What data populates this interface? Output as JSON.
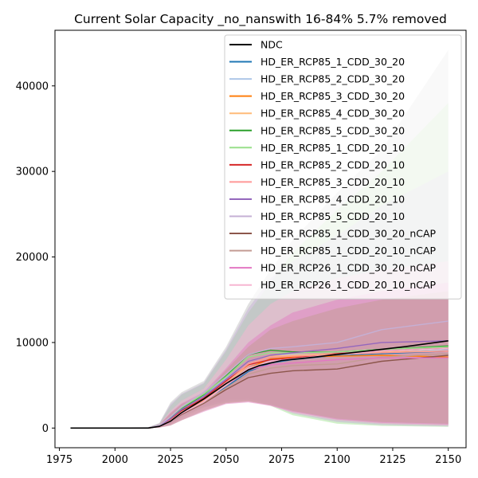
{
  "chart_data": {
    "type": "line",
    "title": "Current Solar Capacity _no_nanswith 16-84% 5.7% removed",
    "xlabel": "",
    "ylabel": "",
    "xlim": [
      1973,
      2158
    ],
    "ylim": [
      -2300,
      46500
    ],
    "x_ticks": [
      1975,
      2000,
      2025,
      2050,
      2075,
      2100,
      2125,
      2150
    ],
    "y_ticks": [
      0,
      10000,
      20000,
      30000,
      40000
    ],
    "legend_position": "upper right",
    "grid": false,
    "bands": [
      {
        "color": "#c7c7c7",
        "opacity": 0.55,
        "x": [
          1980,
          2015,
          2020,
          2025,
          2030,
          2040,
          2050,
          2060,
          2070,
          2080,
          2100,
          2120,
          2150
        ],
        "upper": [
          0,
          100,
          600,
          3000,
          4200,
          5500,
          9500,
          14500,
          18500,
          22000,
          27500,
          32500,
          44200
        ],
        "lower": [
          0,
          0,
          100,
          500,
          1400,
          2600,
          3300,
          3400,
          2900,
          2000,
          900,
          500,
          300
        ]
      },
      {
        "color": "#98df8a",
        "opacity": 0.45,
        "x": [
          1980,
          2015,
          2020,
          2025,
          2030,
          2040,
          2050,
          2060,
          2070,
          2080,
          2100,
          2120,
          2150
        ],
        "upper": [
          0,
          80,
          500,
          2600,
          3900,
          5200,
          9000,
          13500,
          17000,
          20500,
          25500,
          30000,
          38000
        ],
        "lower": [
          0,
          0,
          80,
          400,
          1200,
          2400,
          3000,
          3200,
          2600,
          1500,
          500,
          250,
          150
        ]
      },
      {
        "color": "#c5b0d5",
        "opacity": 0.5,
        "x": [
          1980,
          2015,
          2020,
          2025,
          2030,
          2040,
          2050,
          2060,
          2070,
          2080,
          2100,
          2120,
          2150
        ],
        "upper": [
          0,
          90,
          550,
          2800,
          4000,
          5300,
          9200,
          14000,
          17500,
          19500,
          22500,
          26000,
          30000
        ],
        "lower": [
          0,
          0,
          90,
          450,
          1300,
          2500,
          3100,
          3300,
          2700,
          1700,
          700,
          350,
          200
        ]
      },
      {
        "color": "#f7b6d2",
        "opacity": 0.5,
        "x": [
          1980,
          2015,
          2020,
          2025,
          2030,
          2040,
          2050,
          2060,
          2070,
          2080,
          2100,
          2120,
          2150
        ],
        "upper": [
          0,
          70,
          450,
          2000,
          3200,
          4600,
          8000,
          12000,
          14500,
          16000,
          17500,
          18500,
          19500
        ],
        "lower": [
          0,
          0,
          60,
          350,
          1000,
          2100,
          2900,
          3100,
          2600,
          1800,
          900,
          500,
          300
        ]
      },
      {
        "color": "#e377c2",
        "opacity": 0.45,
        "x": [
          1980,
          2015,
          2020,
          2025,
          2030,
          2040,
          2050,
          2060,
          2070,
          2080,
          2100,
          2120,
          2150
        ],
        "upper": [
          0,
          60,
          400,
          1800,
          2900,
          4200,
          7000,
          10000,
          12000,
          13500,
          15000,
          16000,
          17000
        ],
        "lower": [
          0,
          0,
          50,
          300,
          900,
          1900,
          2800,
          3000,
          2600,
          1900,
          1000,
          600,
          400
        ]
      },
      {
        "color": "#c49c94",
        "opacity": 0.5,
        "x": [
          1980,
          2015,
          2020,
          2025,
          2030,
          2040,
          2050,
          2060,
          2070,
          2080,
          2100,
          2120,
          2150
        ],
        "upper": [
          0,
          60,
          400,
          1700,
          2800,
          4000,
          6800,
          9500,
          11500,
          12500,
          14000,
          15000,
          16000
        ],
        "lower": [
          0,
          0,
          50,
          300,
          900,
          2000,
          2900,
          3100,
          2700,
          2000,
          1100,
          700,
          500
        ]
      }
    ],
    "series": [
      {
        "name": "NDC",
        "color": "#000000",
        "x": [
          1980,
          2015,
          2020,
          2025,
          2030,
          2040,
          2050,
          2060,
          2065,
          2075,
          2090,
          2110,
          2130,
          2150
        ],
        "values": [
          0,
          0,
          200,
          800,
          1800,
          3400,
          5200,
          6800,
          7300,
          7900,
          8300,
          8900,
          9500,
          10200
        ]
      },
      {
        "name": "HD_ER_RCP85_1_CDD_30_20",
        "color": "#1f77b4",
        "x": [
          1980,
          2015,
          2020,
          2025,
          2030,
          2040,
          2050,
          2060,
          2070,
          2080,
          2100,
          2120,
          2150
        ],
        "values": [
          0,
          0,
          200,
          900,
          2100,
          3300,
          4800,
          6600,
          7600,
          8000,
          8500,
          8700,
          9000
        ]
      },
      {
        "name": "HD_ER_RCP85_2_CDD_30_20",
        "color": "#aec7e8",
        "x": [
          1980,
          2015,
          2020,
          2025,
          2030,
          2040,
          2050,
          2060,
          2070,
          2080,
          2100,
          2120,
          2150
        ],
        "values": [
          0,
          0,
          300,
          1200,
          2400,
          3800,
          5800,
          7800,
          8500,
          8600,
          8600,
          8800,
          9200
        ]
      },
      {
        "name": "HD_ER_RCP85_3_CDD_30_20",
        "color": "#ff7f0e",
        "x": [
          1980,
          2015,
          2020,
          2025,
          2030,
          2040,
          2050,
          2060,
          2070,
          2080,
          2100,
          2120,
          2150
        ],
        "values": [
          0,
          0,
          200,
          900,
          1900,
          3200,
          5000,
          7000,
          8100,
          8300,
          8400,
          8500,
          8300
        ]
      },
      {
        "name": "HD_ER_RCP85_4_CDD_30_20",
        "color": "#ffbb78",
        "x": [
          1980,
          2015,
          2020,
          2025,
          2030,
          2040,
          2050,
          2060,
          2070,
          2080,
          2100,
          2120,
          2150
        ],
        "values": [
          0,
          0,
          200,
          900,
          1900,
          3300,
          5200,
          7300,
          8400,
          8500,
          8700,
          8900,
          9000
        ]
      },
      {
        "name": "HD_ER_RCP85_5_CDD_30_20",
        "color": "#2ca02c",
        "x": [
          1980,
          2015,
          2020,
          2025,
          2030,
          2040,
          2050,
          2060,
          2070,
          2080,
          2100,
          2120,
          2150
        ],
        "values": [
          0,
          0,
          300,
          1200,
          2300,
          3900,
          6100,
          8600,
          9100,
          8900,
          8900,
          9200,
          9600
        ]
      },
      {
        "name": "HD_ER_RCP85_1_CDD_20_10",
        "color": "#98df8a",
        "x": [
          1980,
          2015,
          2020,
          2025,
          2030,
          2040,
          2050,
          2060,
          2070,
          2080,
          2100,
          2120,
          2150
        ],
        "values": [
          0,
          0,
          300,
          1300,
          2400,
          4000,
          6000,
          8300,
          8800,
          8800,
          8900,
          9200,
          9500
        ]
      },
      {
        "name": "HD_ER_RCP85_2_CDD_20_10",
        "color": "#d62728",
        "x": [
          1980,
          2015,
          2020,
          2025,
          2030,
          2040,
          2050,
          2060,
          2070,
          2080,
          2100,
          2120,
          2150
        ],
        "values": [
          0,
          0,
          200,
          1000,
          2000,
          3500,
          5500,
          7400,
          8000,
          8200,
          8700,
          9000,
          9300
        ]
      },
      {
        "name": "HD_ER_RCP85_3_CDD_20_10",
        "color": "#ff9896",
        "x": [
          1980,
          2015,
          2020,
          2025,
          2030,
          2040,
          2050,
          2060,
          2070,
          2080,
          2100,
          2120,
          2150
        ],
        "values": [
          0,
          0,
          200,
          900,
          1900,
          3300,
          5300,
          7500,
          8300,
          8400,
          8600,
          8800,
          9000
        ]
      },
      {
        "name": "HD_ER_RCP85_4_CDD_20_10",
        "color": "#9467bd",
        "x": [
          1980,
          2015,
          2020,
          2025,
          2030,
          2040,
          2050,
          2060,
          2070,
          2080,
          2100,
          2120,
          2150
        ],
        "values": [
          0,
          0,
          300,
          1100,
          2200,
          3700,
          5700,
          7800,
          8500,
          8800,
          9300,
          10000,
          10200
        ]
      },
      {
        "name": "HD_ER_RCP85_5_CDD_20_10",
        "color": "#c5b0d5",
        "x": [
          1980,
          2015,
          2020,
          2025,
          2030,
          2040,
          2050,
          2060,
          2070,
          2080,
          2100,
          2120,
          2150
        ],
        "values": [
          0,
          0,
          300,
          1300,
          2500,
          4200,
          6300,
          8600,
          9300,
          9500,
          10000,
          11500,
          12500
        ]
      },
      {
        "name": "HD_ER_RCP85_1_CDD_30_20_nCAP",
        "color": "#8c564b",
        "x": [
          1980,
          2015,
          2020,
          2025,
          2030,
          2040,
          2050,
          2060,
          2070,
          2080,
          2100,
          2120,
          2150
        ],
        "values": [
          0,
          0,
          200,
          800,
          1600,
          2900,
          4500,
          5900,
          6400,
          6700,
          6900,
          7800,
          8500
        ]
      },
      {
        "name": "HD_ER_RCP85_1_CDD_20_10_nCAP",
        "color": "#c49c94",
        "x": [
          1980,
          2015,
          2020,
          2025,
          2030,
          2040,
          2050,
          2060,
          2070,
          2080,
          2100,
          2120,
          2150
        ],
        "values": [
          0,
          0,
          200,
          800,
          1700,
          3000,
          4700,
          6300,
          7000,
          7300,
          7500,
          8300,
          8700
        ]
      },
      {
        "name": "HD_ER_RCP26_1_CDD_30_20_nCAP",
        "color": "#e377c2",
        "x": [
          1980,
          2015,
          2020,
          2025,
          2030,
          2040,
          2050,
          2060,
          2070,
          2080,
          2100,
          2120,
          2150
        ],
        "values": [
          0,
          0,
          200,
          800,
          1700,
          3100,
          5000,
          6800,
          7400,
          7600,
          8000,
          8200,
          8200
        ]
      },
      {
        "name": "HD_ER_RCP26_1_CDD_20_10_nCAP",
        "color": "#f7b6d2",
        "x": [
          1980,
          2015,
          2020,
          2025,
          2030,
          2040,
          2050,
          2060,
          2070,
          2080,
          2100,
          2120,
          2150
        ],
        "values": [
          0,
          0,
          200,
          800,
          1700,
          3100,
          5000,
          7000,
          7800,
          8100,
          8600,
          9000,
          9300
        ]
      }
    ]
  }
}
